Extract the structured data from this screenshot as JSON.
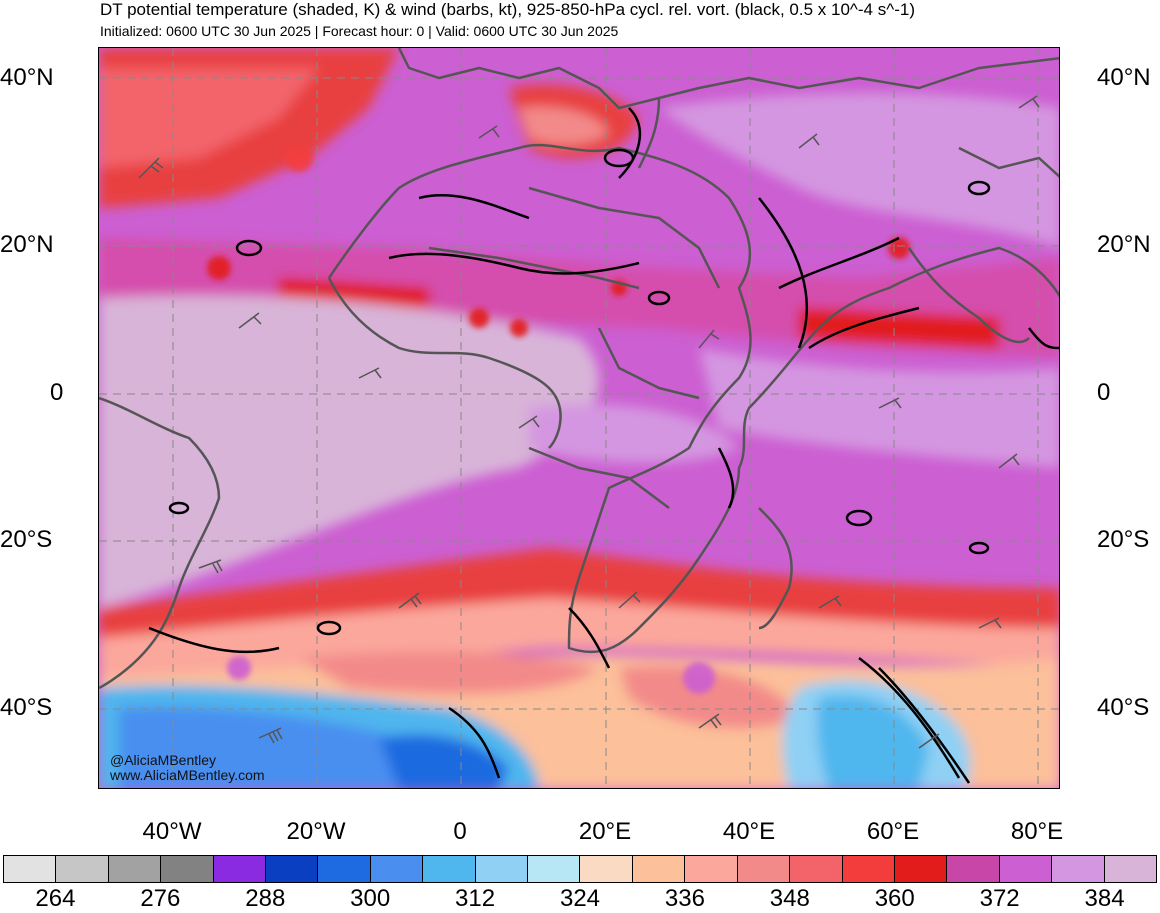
{
  "header": {
    "title": "DT potential temperature (shaded, K) & wind (barbs, kt), 925-850-hPa cycl. rel. vort. (black, 0.5 x 10^-4 s^-1)",
    "subtitle": "Initialized: 0600 UTC 30 Jun 2025 | Forecast hour: 0 | Valid: 0600 UTC 30 Jun 2025"
  },
  "map": {
    "lat_labels": [
      "40°N",
      "20°N",
      "0",
      "20°S",
      "40°S"
    ],
    "lon_labels": [
      "40°W",
      "20°W",
      "0",
      "20°E",
      "40°E",
      "60°E",
      "80°E"
    ],
    "credit": [
      "@AliciaMBentley",
      "www.AliciaMBentley.com"
    ]
  },
  "colorbar": {
    "colors": [
      "#e2e2e2",
      "#c6c6c6",
      "#a2a2a2",
      "#828282",
      "#8a2be2",
      "#0b3fc2",
      "#1e6ae0",
      "#4a8ff0",
      "#4fb6ee",
      "#8fd0f4",
      "#b7e6f4",
      "#fbdac4",
      "#fcc09a",
      "#fba79c",
      "#f38a8a",
      "#f2636a",
      "#f33d3d",
      "#e21b1b",
      "#c846a8",
      "#cc5fd2",
      "#d496e0",
      "#d8b4d8"
    ],
    "labels": [
      "264",
      "276",
      "288",
      "300",
      "312",
      "324",
      "336",
      "348",
      "360",
      "372",
      "384"
    ]
  }
}
